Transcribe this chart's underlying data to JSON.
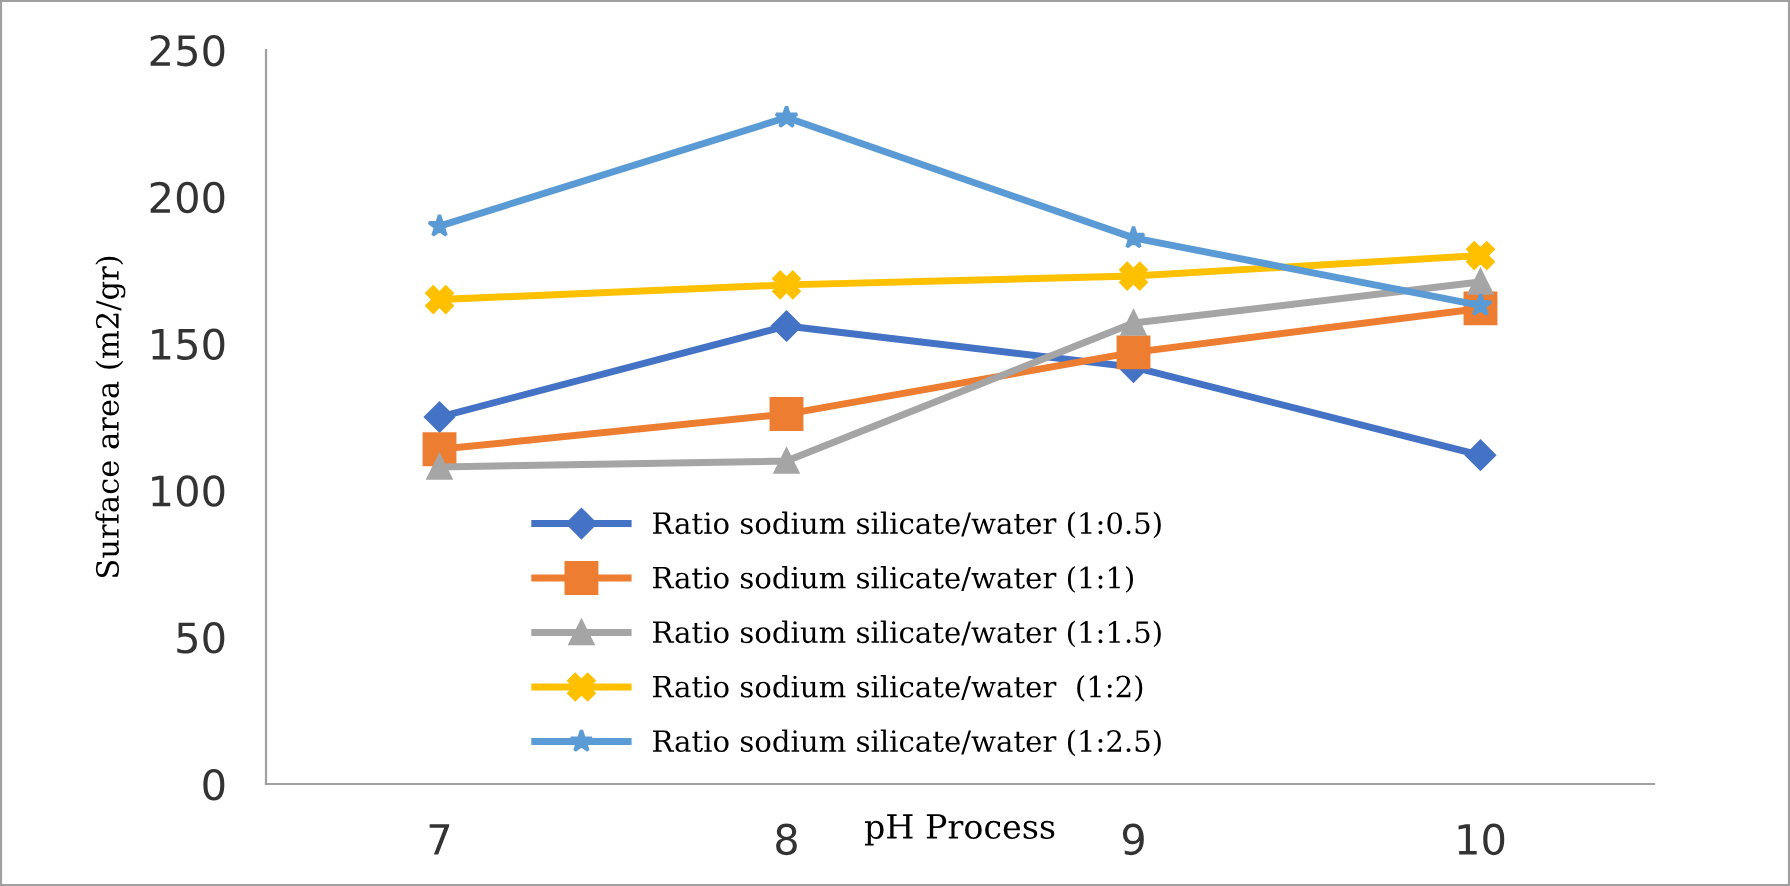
{
  "chart_data": {
    "type": "line",
    "xlabel": "pH Process",
    "ylabel": "Surface area (m2/gr)",
    "categories": [
      "7",
      "8",
      "9",
      "10"
    ],
    "series": [
      {
        "name": "Ratio sodium silicate/water (1:0.5)",
        "color": "#4472c4",
        "marker": "diamond",
        "values": [
          125,
          156,
          142,
          112
        ]
      },
      {
        "name": "Ratio sodium silicate/water (1:1)",
        "color": "#ed7d31",
        "marker": "square",
        "values": [
          114,
          126,
          147,
          162
        ]
      },
      {
        "name": "Ratio sodium silicate/water (1:1.5)",
        "color": "#a5a5a5",
        "marker": "triangle",
        "values": [
          108,
          110,
          157,
          171
        ]
      },
      {
        "name": "Ratio sodium silicate/water  (1:2)",
        "color": "#ffc000",
        "marker": "cross",
        "values": [
          165,
          170,
          173,
          180
        ]
      },
      {
        "name": "Ratio sodium silicate/water (1:2.5)",
        "color": "#5b9bd5",
        "marker": "star",
        "values": [
          190,
          227,
          186,
          163
        ]
      }
    ],
    "ylim": [
      0,
      250
    ],
    "yticks": [
      0,
      50,
      100,
      150,
      200,
      250
    ],
    "grid": false,
    "legend": "bottom",
    "line_style": "solid"
  }
}
